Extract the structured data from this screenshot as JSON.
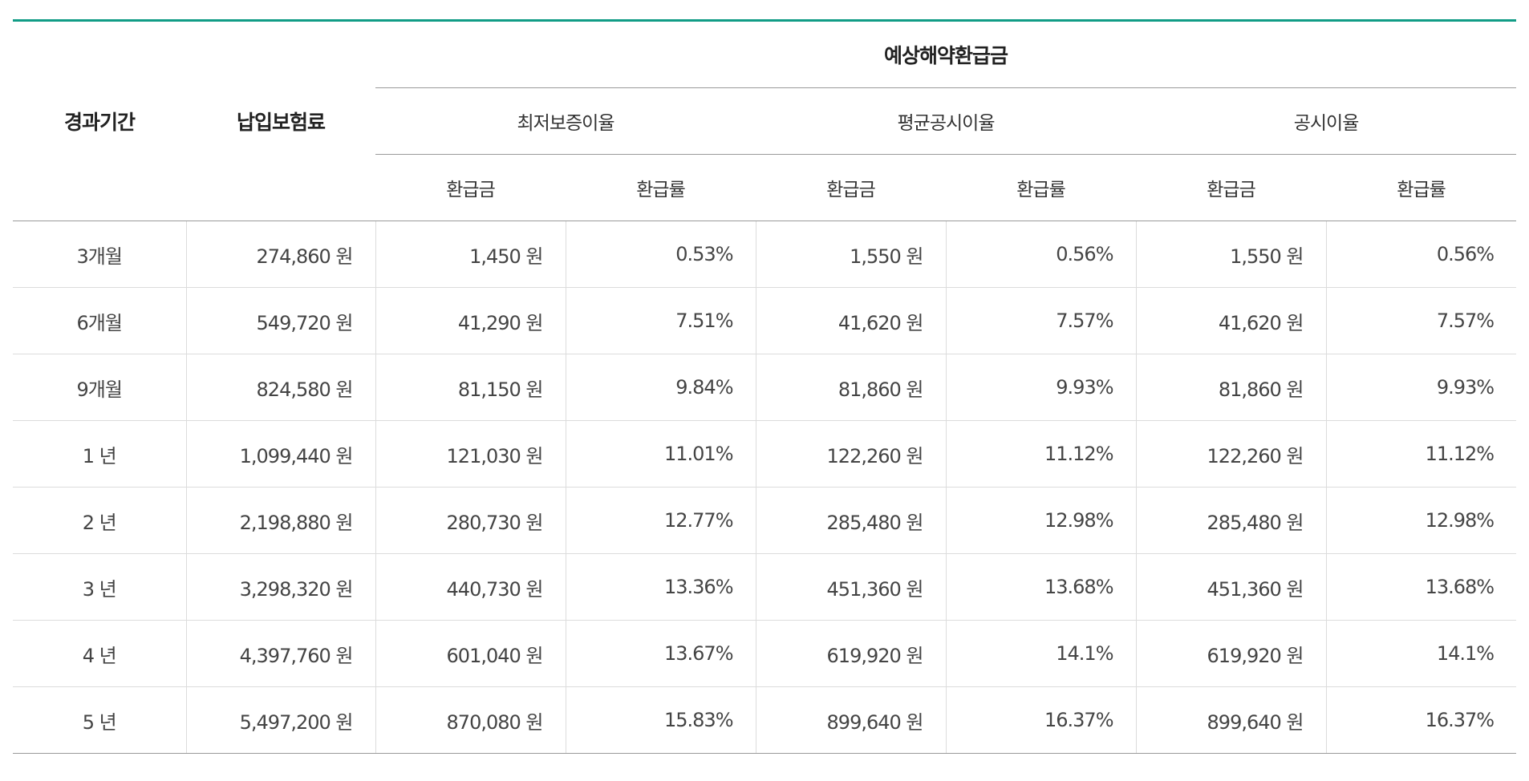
{
  "header": {
    "period": "경과기간",
    "premium": "납입보험료",
    "estimated_refund": "예상해약환급금",
    "groups": [
      "최저보증이율",
      "평균공시이율",
      "공시이율"
    ],
    "sub_amount": "환급금",
    "sub_rate": "환급률"
  },
  "rows": [
    {
      "period": "3개월",
      "premium": "274,860 원",
      "min_amount": "1,450 원",
      "min_rate": "0.53%",
      "avg_amount": "1,550 원",
      "avg_rate": "0.56%",
      "pub_amount": "1,550 원",
      "pub_rate": "0.56%"
    },
    {
      "period": "6개월",
      "premium": "549,720 원",
      "min_amount": "41,290 원",
      "min_rate": "7.51%",
      "avg_amount": "41,620 원",
      "avg_rate": "7.57%",
      "pub_amount": "41,620 원",
      "pub_rate": "7.57%"
    },
    {
      "period": "9개월",
      "premium": "824,580 원",
      "min_amount": "81,150 원",
      "min_rate": "9.84%",
      "avg_amount": "81,860 원",
      "avg_rate": "9.93%",
      "pub_amount": "81,860 원",
      "pub_rate": "9.93%"
    },
    {
      "period": "1 년",
      "premium": "1,099,440 원",
      "min_amount": "121,030 원",
      "min_rate": "11.01%",
      "avg_amount": "122,260 원",
      "avg_rate": "11.12%",
      "pub_amount": "122,260 원",
      "pub_rate": "11.12%"
    },
    {
      "period": "2 년",
      "premium": "2,198,880 원",
      "min_amount": "280,730 원",
      "min_rate": "12.77%",
      "avg_amount": "285,480 원",
      "avg_rate": "12.98%",
      "pub_amount": "285,480 원",
      "pub_rate": "12.98%"
    },
    {
      "period": "3 년",
      "premium": "3,298,320 원",
      "min_amount": "440,730 원",
      "min_rate": "13.36%",
      "avg_amount": "451,360 원",
      "avg_rate": "13.68%",
      "pub_amount": "451,360 원",
      "pub_rate": "13.68%"
    },
    {
      "period": "4 년",
      "premium": "4,397,760 원",
      "min_amount": "601,040 원",
      "min_rate": "13.67%",
      "avg_amount": "619,920 원",
      "avg_rate": "14.1%",
      "pub_amount": "619,920 원",
      "pub_rate": "14.1%"
    },
    {
      "period": "5 년",
      "premium": "5,497,200 원",
      "min_amount": "870,080 원",
      "min_rate": "15.83%",
      "avg_amount": "899,640 원",
      "avg_rate": "16.37%",
      "pub_amount": "899,640 원",
      "pub_rate": "16.37%"
    }
  ]
}
